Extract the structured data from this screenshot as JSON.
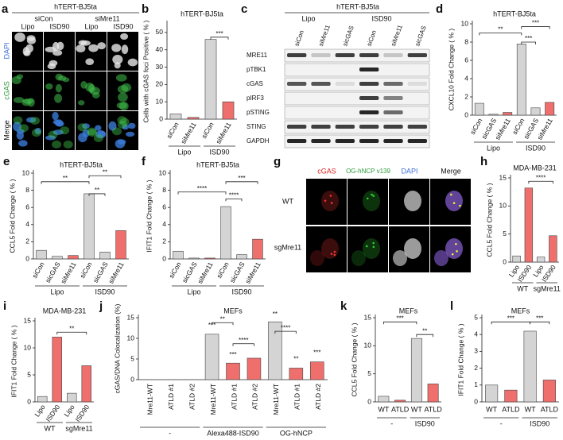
{
  "microscopy_a": {
    "letter": "a",
    "title": "hTERT-BJ5ta",
    "columns": [
      "siCon",
      "siMre11"
    ],
    "subcolumns": [
      "Lipo",
      "ISD90",
      "Lipo",
      "ISD90"
    ],
    "rows": [
      "DAPI",
      "cGAS",
      "Merge"
    ]
  },
  "blot_c": {
    "letter": "c",
    "title": "hTERT-BJ5ta",
    "groups": [
      "Lipo",
      "ISD90"
    ],
    "lanes": [
      "siCon",
      "siMre11",
      "sicGAS",
      "siCon",
      "siMre11",
      "sicGAS"
    ],
    "proteins": [
      "MRE11",
      "pTBK1",
      "cGAS",
      "pIRF3",
      "pSTING",
      "STING",
      "GAPDH"
    ]
  },
  "microscopy_g": {
    "letter": "g",
    "columns": [
      "cGAS",
      "OG-hNCP v139",
      "DAPI",
      "Merge"
    ],
    "rows": [
      "WT",
      "sgMre11"
    ]
  },
  "chart_data": [
    {
      "letter": "b",
      "type": "bar",
      "title": "hTERT-BJ5ta",
      "ylabel": "Cells with cGAS foci Positive ( % )",
      "ylim": [
        0,
        55
      ],
      "yticks": [
        0,
        10,
        20,
        30,
        40,
        50
      ],
      "groups": [
        {
          "name": "Lipo",
          "categories": [
            "siCon",
            "siMre11"
          ],
          "values": [
            3,
            1
          ],
          "colors": [
            "#d4d4d4",
            "#ef6f6c"
          ]
        },
        {
          "name": "ISD90",
          "categories": [
            "siCon",
            "siMre11"
          ],
          "values": [
            46,
            10
          ],
          "colors": [
            "#d4d4d4",
            "#ef6f6c"
          ]
        }
      ],
      "annotations": [
        "***"
      ]
    },
    {
      "letter": "d",
      "type": "bar",
      "title": "hTERT-BJ5ta",
      "ylabel": "CXCL10 Fold Change ( % )",
      "ylim": [
        0,
        10
      ],
      "yticks": [
        0,
        2,
        4,
        6,
        8,
        10
      ],
      "groups": [
        {
          "name": "Lipo",
          "categories": [
            "siCon",
            "sicGAS",
            "siMre11"
          ],
          "values": [
            1.3,
            0.1,
            0.3
          ],
          "colors": [
            "#d4d4d4",
            "#d4d4d4",
            "#ef6f6c"
          ]
        },
        {
          "name": "ISD90",
          "categories": [
            "siCon",
            "sicGAS",
            "siMre11"
          ],
          "values": [
            7.8,
            0.8,
            1.4
          ],
          "colors": [
            "#d4d4d4",
            "#d4d4d4",
            "#ef6f6c"
          ]
        }
      ],
      "annotations": [
        "**",
        "***",
        "***"
      ]
    },
    {
      "letter": "e",
      "type": "bar",
      "title": "hTERT-BJ5ta",
      "ylabel": "CCL5 Fold Change ( % )",
      "ylim": [
        0,
        10
      ],
      "yticks": [
        0,
        2,
        4,
        6,
        8,
        10
      ],
      "groups": [
        {
          "name": "Lipo",
          "categories": [
            "siCon",
            "sicGAS",
            "siMre11"
          ],
          "values": [
            1.0,
            0.3,
            0.4
          ],
          "colors": [
            "#d4d4d4",
            "#d4d4d4",
            "#ef6f6c"
          ]
        },
        {
          "name": "ISD90",
          "categories": [
            "siCon",
            "sicGAS",
            "siMre11"
          ],
          "values": [
            7.6,
            0.8,
            3.3
          ],
          "colors": [
            "#d4d4d4",
            "#d4d4d4",
            "#ef6f6c"
          ]
        }
      ],
      "annotations": [
        "**",
        "**",
        "**"
      ]
    },
    {
      "letter": "f",
      "type": "bar",
      "title": "hTERT-BJ5ta",
      "ylabel": "IFIT1 Fold Change ( % )",
      "ylim": [
        0,
        10
      ],
      "yticks": [
        0,
        2,
        4,
        6,
        8,
        10
      ],
      "groups": [
        {
          "name": "Lipo",
          "categories": [
            "siCon",
            "sicGAS",
            "siMre11"
          ],
          "values": [
            0.9,
            0.1,
            0.1
          ],
          "colors": [
            "#d4d4d4",
            "#d4d4d4",
            "#ef6f6c"
          ]
        },
        {
          "name": "ISD90",
          "categories": [
            "siCon",
            "sicGAS",
            "siMre11"
          ],
          "values": [
            6.1,
            0.5,
            2.3
          ],
          "colors": [
            "#d4d4d4",
            "#d4d4d4",
            "#ef6f6c"
          ]
        }
      ],
      "annotations": [
        "****",
        "****",
        "***"
      ]
    },
    {
      "letter": "h",
      "type": "bar",
      "title": "MDA-MB-231",
      "ylabel": "CCL5 Fold Change ( % )",
      "ylim": [
        0,
        15
      ],
      "yticks": [
        0,
        5,
        10,
        15
      ],
      "groups": [
        {
          "name": "WT",
          "categories": [
            "Lipo",
            "ISD90"
          ],
          "values": [
            1.1,
            13.2
          ],
          "colors": [
            "#d4d4d4",
            "#ef6f6c"
          ]
        },
        {
          "name": "sgMre11",
          "categories": [
            "Lipo",
            "ISD90"
          ],
          "values": [
            0.9,
            4.7
          ],
          "colors": [
            "#d4d4d4",
            "#ef6f6c"
          ]
        }
      ],
      "annotations": [
        "****"
      ]
    },
    {
      "letter": "i",
      "type": "bar",
      "title": "MDA-MB-231",
      "ylabel": "IFIT1 Fold Change ( % )",
      "ylim": [
        0,
        15
      ],
      "yticks": [
        0,
        5,
        10,
        15
      ],
      "groups": [
        {
          "name": "WT",
          "categories": [
            "Lipo",
            "ISD90"
          ],
          "values": [
            1.0,
            12.0
          ],
          "colors": [
            "#d4d4d4",
            "#ef6f6c"
          ]
        },
        {
          "name": "sgMre11",
          "categories": [
            "Lipo",
            "ISD90"
          ],
          "values": [
            1.6,
            6.7
          ],
          "colors": [
            "#d4d4d4",
            "#ef6f6c"
          ]
        }
      ],
      "annotations": [
        "**"
      ]
    },
    {
      "letter": "j",
      "type": "bar",
      "title": "MEFs",
      "ylabel": "cGAS/DNA Colocalization (%)",
      "ylim": [
        0,
        15
      ],
      "yticks": [
        0,
        5,
        10,
        15
      ],
      "groups": [
        {
          "name": "-",
          "categories": [
            "Mre11-WT",
            "ATLD #1",
            "ATLD #2"
          ],
          "values": [
            0,
            0,
            0
          ],
          "colors": [
            "#d4d4d4",
            "#ef6f6c",
            "#ef6f6c"
          ]
        },
        {
          "name": "Alexa488-ISD90",
          "categories": [
            "Mre11-WT",
            "ATLD #1",
            "ATLD #2"
          ],
          "values": [
            11,
            4,
            5.2
          ],
          "colors": [
            "#d4d4d4",
            "#ef6f6c",
            "#ef6f6c"
          ]
        },
        {
          "name": "OG-hNCP",
          "categories": [
            "Mre11-WT",
            "ATLD #1",
            "ATLD #2"
          ],
          "values": [
            14,
            2.8,
            4.3
          ],
          "colors": [
            "#d4d4d4",
            "#ef6f6c",
            "#ef6f6c"
          ]
        }
      ],
      "annotations": [
        "***",
        "***",
        "**",
        "****",
        "**",
        "**",
        "***",
        "****"
      ]
    },
    {
      "letter": "k",
      "type": "bar",
      "title": "MEFs",
      "ylabel": "CCL5 Fold Change ( % )",
      "ylim": [
        0,
        15
      ],
      "yticks": [
        0,
        5,
        10,
        15
      ],
      "groups": [
        {
          "name": "-",
          "categories": [
            "WT",
            "ATLD"
          ],
          "values": [
            1.0,
            0.3
          ],
          "colors": [
            "#d4d4d4",
            "#ef6f6c"
          ]
        },
        {
          "name": "ISD90",
          "categories": [
            "WT",
            "ATLD"
          ],
          "values": [
            11.3,
            3.2
          ],
          "colors": [
            "#d4d4d4",
            "#ef6f6c"
          ]
        }
      ],
      "annotations": [
        "***",
        "**"
      ]
    },
    {
      "letter": "l",
      "type": "bar",
      "title": "MEFs",
      "ylabel": "IFIT1 Fold Change ( % )",
      "ylim": [
        0,
        5
      ],
      "yticks": [
        0,
        1,
        2,
        3,
        4,
        5
      ],
      "groups": [
        {
          "name": "-",
          "categories": [
            "WT",
            "ATLD"
          ],
          "values": [
            1.0,
            0.7
          ],
          "colors": [
            "#d4d4d4",
            "#ef6f6c"
          ]
        },
        {
          "name": "ISD90",
          "categories": [
            "WT",
            "ATLD"
          ],
          "values": [
            4.2,
            1.3
          ],
          "colors": [
            "#d4d4d4",
            "#ef6f6c"
          ]
        }
      ],
      "annotations": [
        "***",
        "***"
      ]
    }
  ]
}
